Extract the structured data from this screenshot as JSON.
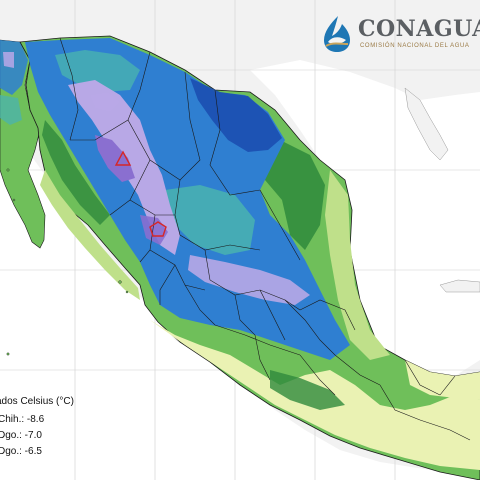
{
  "logo": {
    "name": "CONAGUA",
    "subtitle": "COMISIÓN NACIONAL DEL AGUA"
  },
  "legend": {
    "title": "ados Celsius (°C)",
    "items": [
      {
        "label": "Chih.: -8.6"
      },
      {
        "label": "Dgo.: -7.0"
      },
      {
        "label": "Dgo.: -6.5"
      }
    ]
  },
  "markers": [
    {
      "name": "min-temp-marker-chihuahua",
      "shape": "triangle",
      "color": "#d62728"
    },
    {
      "name": "min-temp-marker-durango",
      "shape": "pentagon",
      "color": "#d62728"
    }
  ],
  "colors": {
    "sea": "#ffffff",
    "land_background": "#f2f2f2",
    "warm": "#eaf2b3",
    "mild": "#bfe08a",
    "green": "#6fbf5a",
    "dark_green": "#2f8a3c",
    "teal": "#49b3b0",
    "blue": "#2f7fd1",
    "dark_blue": "#1c4fb0",
    "lavender": "#b8a8e6",
    "purple": "#8a6fd0",
    "border": "#1a1a1a",
    "grid": "#cfcfcf"
  }
}
